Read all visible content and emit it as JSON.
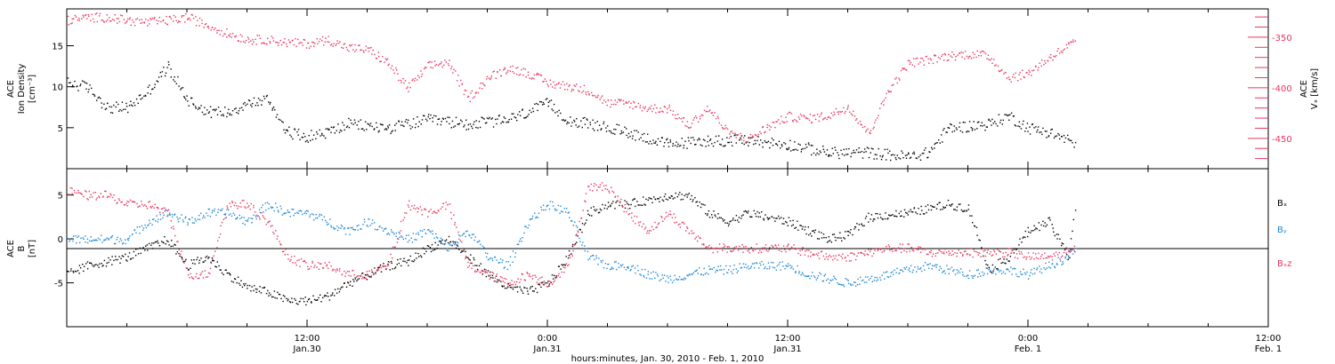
{
  "colors": {
    "black": "#000000",
    "red": "#e8365f",
    "blue": "#1f86d6"
  },
  "xaxis": {
    "label": "hours:minutes, Jan. 30, 2010 - Feb. 1, 2010",
    "ticks": [
      {
        "time": "12:00",
        "date": "Jan.30",
        "hour": 12
      },
      {
        "time": "0:00",
        "date": "Jan.31",
        "hour": 24
      },
      {
        "time": "12:00",
        "date": "Jan.31",
        "hour": 36
      },
      {
        "time": "0:00",
        "date": "Feb. 1",
        "hour": 48
      },
      {
        "time": "12:00",
        "date": "Feb. 1",
        "hour": 60
      }
    ]
  },
  "panel1": {
    "left_label": [
      "ACE",
      "Ion Density",
      "[cm⁻³]"
    ],
    "right_label": [
      "ACE",
      "Vₓ [km/s]"
    ],
    "left_ticks": [
      "15",
      "10",
      "5"
    ],
    "right_ticks": [
      "-350",
      "-400",
      "-450"
    ]
  },
  "panel2": {
    "left_label": [
      "ACE",
      "B",
      "[nT]"
    ],
    "left_ticks": [
      "5",
      "0",
      "-5"
    ],
    "legend": [
      "Bₓ",
      "Bᵧ",
      "Bₓz"
    ]
  },
  "chart_data": [
    {
      "type": "scatter",
      "title": "",
      "xlabel": "hours:minutes, Jan. 30, 2010 - Feb. 1, 2010",
      "ylabel": "ACE Ion Density [cm⁻³]",
      "y2label": "ACE Vx [km/s]",
      "xlim": [
        "2010-01-30 00:00",
        "2010-02-01 12:00"
      ],
      "ylim": [
        0,
        19.5
      ],
      "y2lim": [
        -480,
        -322
      ],
      "series": [
        {
          "name": "Ion Density",
          "axis": "left",
          "color": "black",
          "x": [
            "2010-01-30 00:00",
            "2010-01-30 01:00",
            "2010-01-30 02:00",
            "2010-01-30 03:00",
            "2010-01-30 04:00",
            "2010-01-30 05:00",
            "2010-01-30 06:00",
            "2010-01-30 07:00",
            "2010-01-30 08:00",
            "2010-01-30 09:00",
            "2010-01-30 10:00",
            "2010-01-30 11:00",
            "2010-01-30 12:00",
            "2010-01-30 13:00",
            "2010-01-30 14:00",
            "2010-01-30 16:00",
            "2010-01-30 18:00",
            "2010-01-30 20:00",
            "2010-01-30 22:00",
            "2010-01-31 00:00",
            "2010-01-31 01:00",
            "2010-01-31 02:00",
            "2010-01-31 04:00",
            "2010-01-31 06:00",
            "2010-01-31 08:00",
            "2010-01-31 10:00",
            "2010-01-31 12:00",
            "2010-01-31 14:00",
            "2010-01-31 16:00",
            "2010-01-31 18:00",
            "2010-01-31 19:00",
            "2010-01-31 20:00",
            "2010-01-31 22:00",
            "2010-01-31 23:00",
            "2010-02-01 00:00",
            "2010-02-01 01:00",
            "2010-02-01 02:00",
            "2010-02-01 02:20"
          ],
          "y": [
            10.5,
            10,
            7.5,
            7.5,
            9.5,
            12.5,
            8.5,
            7,
            7,
            8,
            8.5,
            4.5,
            4,
            4.5,
            5.5,
            5,
            6,
            5.5,
            6,
            8,
            6,
            5.5,
            4.5,
            3,
            3.5,
            3.5,
            3,
            2,
            2,
            1.5,
            2,
            5,
            5.5,
            6.5,
            5,
            4.5,
            3.5,
            3
          ]
        },
        {
          "name": "Vx",
          "axis": "right",
          "color": "red",
          "x": [
            "2010-01-30 00:00",
            "2010-01-30 01:00",
            "2010-01-30 02:00",
            "2010-01-30 03:00",
            "2010-01-30 04:00",
            "2010-01-30 05:00",
            "2010-01-30 06:00",
            "2010-01-30 07:00",
            "2010-01-30 08:00",
            "2010-01-30 09:00",
            "2010-01-30 10:00",
            "2010-01-30 11:00",
            "2010-01-30 12:00",
            "2010-01-30 13:00",
            "2010-01-30 14:00",
            "2010-01-30 15:00",
            "2010-01-30 16:00",
            "2010-01-30 17:00",
            "2010-01-30 18:00",
            "2010-01-30 19:00",
            "2010-01-30 20:00",
            "2010-01-30 21:00",
            "2010-01-30 22:00",
            "2010-01-30 23:00",
            "2010-01-31 00:00",
            "2010-01-31 01:00",
            "2010-01-31 02:00",
            "2010-01-31 03:00",
            "2010-01-31 04:00",
            "2010-01-31 05:00",
            "2010-01-31 06:00",
            "2010-01-31 07:00",
            "2010-01-31 08:00",
            "2010-01-31 09:00",
            "2010-01-31 10:00",
            "2010-01-31 11:00",
            "2010-01-31 12:00",
            "2010-01-31 13:00",
            "2010-01-31 14:00",
            "2010-01-31 15:00",
            "2010-01-31 16:00",
            "2010-01-31 17:00",
            "2010-01-31 18:00",
            "2010-01-31 19:00",
            "2010-01-31 20:00",
            "2010-01-31 21:00",
            "2010-01-31 22:00",
            "2010-01-31 23:00",
            "2010-02-01 00:00",
            "2010-02-01 01:00",
            "2010-02-01 02:00",
            "2010-02-01 02:20"
          ],
          "y": [
            -333,
            -330,
            -330,
            -333,
            -335,
            -333,
            -330,
            -338,
            -346,
            -352,
            -352,
            -355,
            -356,
            -352,
            -360,
            -362,
            -375,
            -400,
            -378,
            -374,
            -410,
            -390,
            -380,
            -385,
            -395,
            -398,
            -402,
            -415,
            -415,
            -420,
            -420,
            -437,
            -420,
            -445,
            -450,
            -438,
            -428,
            -430,
            -427,
            -418,
            -445,
            -402,
            -375,
            -372,
            -368,
            -366,
            -368,
            -390,
            -385,
            -370,
            -358,
            -353
          ]
        }
      ]
    },
    {
      "type": "scatter",
      "title": "",
      "xlabel": "hours:minutes, Jan. 30, 2010 - Feb. 1, 2010",
      "ylabel": "ACE B [nT]",
      "xlim": [
        "2010-01-30 00:00",
        "2010-02-01 12:00"
      ],
      "ylim": [
        -10,
        8
      ],
      "series": [
        {
          "name": "Bx",
          "color": "black",
          "x": [
            "2010-01-30 00:00",
            "2010-01-30 01:00",
            "2010-01-30 02:00",
            "2010-01-30 03:00",
            "2010-01-30 04:00",
            "2010-01-30 05:00",
            "2010-01-30 06:00",
            "2010-01-30 07:00",
            "2010-01-30 08:00",
            "2010-01-30 09:00",
            "2010-01-30 10:00",
            "2010-01-30 11:00",
            "2010-01-30 12:00",
            "2010-01-30 13:00",
            "2010-01-30 14:00",
            "2010-01-30 15:00",
            "2010-01-30 16:00",
            "2010-01-30 17:00",
            "2010-01-30 18:00",
            "2010-01-30 19:00",
            "2010-01-30 20:00",
            "2010-01-30 21:00",
            "2010-01-30 22:00",
            "2010-01-30 23:00",
            "2010-01-31 00:00",
            "2010-01-31 01:00",
            "2010-01-31 02:00",
            "2010-01-31 03:00",
            "2010-01-31 04:00",
            "2010-01-31 05:00",
            "2010-01-31 06:00",
            "2010-01-31 07:00",
            "2010-01-31 08:00",
            "2010-01-31 09:00",
            "2010-01-31 10:00",
            "2010-01-31 11:00",
            "2010-01-31 12:00",
            "2010-01-31 13:00",
            "2010-01-31 14:00",
            "2010-01-31 15:00",
            "2010-01-31 16:00",
            "2010-01-31 17:00",
            "2010-01-31 18:00",
            "2010-01-31 19:00",
            "2010-01-31 20:00",
            "2010-01-31 21:00",
            "2010-01-31 22:00",
            "2010-01-31 23:00",
            "2010-02-01 00:00",
            "2010-02-01 01:00",
            "2010-02-01 02:00",
            "2010-02-01 02:20"
          ],
          "y": [
            -4,
            -3,
            -2.5,
            -2,
            -1,
            0,
            -3,
            -2,
            -4,
            -5.5,
            -6,
            -7,
            -7,
            -6.5,
            -5,
            -4,
            -3,
            -2.5,
            -1,
            0,
            -2,
            -4,
            -5.5,
            -6,
            -5,
            -2,
            3,
            4,
            4,
            4.5,
            5,
            5,
            3,
            2,
            3,
            2.5,
            2,
            1,
            0,
            0.5,
            2.5,
            2.8,
            3,
            3.5,
            4,
            3.5,
            -3.5,
            -2,
            1,
            2,
            -2,
            4
          ]
        },
        {
          "name": "By",
          "color": "blue",
          "x": [
            "2010-01-30 00:00",
            "2010-01-30 01:00",
            "2010-01-30 02:00",
            "2010-01-30 03:00",
            "2010-01-30 04:00",
            "2010-01-30 05:00",
            "2010-01-30 06:00",
            "2010-01-30 07:00",
            "2010-01-30 08:00",
            "2010-01-30 09:00",
            "2010-01-30 10:00",
            "2010-01-30 11:00",
            "2010-01-30 12:00",
            "2010-01-30 13:00",
            "2010-01-30 14:00",
            "2010-01-30 15:00",
            "2010-01-30 16:00",
            "2010-01-30 17:00",
            "2010-01-30 18:00",
            "2010-01-30 19:00",
            "2010-01-30 20:00",
            "2010-01-30 21:00",
            "2010-01-30 22:00",
            "2010-01-30 23:00",
            "2010-01-31 00:00",
            "2010-01-31 01:00",
            "2010-01-31 02:00",
            "2010-01-31 03:00",
            "2010-01-31 04:00",
            "2010-01-31 05:00",
            "2010-01-31 06:00",
            "2010-01-31 07:00",
            "2010-01-31 08:00",
            "2010-01-31 09:00",
            "2010-01-31 10:00",
            "2010-01-31 11:00",
            "2010-01-31 12:00",
            "2010-01-31 13:00",
            "2010-01-31 14:00",
            "2010-01-31 15:00",
            "2010-01-31 16:00",
            "2010-01-31 17:00",
            "2010-01-31 18:00",
            "2010-01-31 19:00",
            "2010-01-31 20:00",
            "2010-01-31 21:00",
            "2010-01-31 22:00",
            "2010-01-31 23:00",
            "2010-02-01 00:00",
            "2010-02-01 01:00",
            "2010-02-01 02:00",
            "2010-02-01 02:20"
          ],
          "y": [
            0,
            0,
            0,
            0,
            2,
            3,
            2,
            3,
            3,
            2,
            4,
            3,
            3,
            2,
            1,
            2,
            1,
            0,
            1,
            -1,
            1,
            -2,
            -3,
            2,
            4,
            3,
            -2,
            -3,
            -3,
            -4,
            -4.5,
            -4,
            -3.5,
            -3.5,
            -3,
            -3,
            -3,
            -4,
            -4.5,
            -5,
            -4.5,
            -4,
            -3.5,
            -3,
            -3.5,
            -4,
            -3.5,
            -3.5,
            -4,
            -3,
            -2,
            -1
          ]
        },
        {
          "name": "Bz",
          "color": "red",
          "x": [
            "2010-01-30 00:00",
            "2010-01-30 01:00",
            "2010-01-30 02:00",
            "2010-01-30 03:00",
            "2010-01-30 04:00",
            "2010-01-30 05:00",
            "2010-01-30 06:00",
            "2010-01-30 07:00",
            "2010-01-30 08:00",
            "2010-01-30 09:00",
            "2010-01-30 10:00",
            "2010-01-30 11:00",
            "2010-01-30 12:00",
            "2010-01-30 13:00",
            "2010-01-30 14:00",
            "2010-01-30 15:00",
            "2010-01-30 16:00",
            "2010-01-30 17:00",
            "2010-01-30 18:00",
            "2010-01-30 19:00",
            "2010-01-30 20:00",
            "2010-01-30 21:00",
            "2010-01-30 22:00",
            "2010-01-30 23:00",
            "2010-01-31 00:00",
            "2010-01-31 01:00",
            "2010-01-31 02:00",
            "2010-01-31 03:00",
            "2010-01-31 04:00",
            "2010-01-31 05:00",
            "2010-01-31 06:00",
            "2010-01-31 07:00",
            "2010-01-31 08:00",
            "2010-01-31 09:00",
            "2010-01-31 10:00",
            "2010-01-31 11:00",
            "2010-01-31 12:00",
            "2010-01-31 13:00",
            "2010-01-31 14:00",
            "2010-01-31 15:00",
            "2010-01-31 16:00",
            "2010-01-31 17:00",
            "2010-01-31 18:00",
            "2010-01-31 19:00",
            "2010-01-31 20:00",
            "2010-01-31 21:00",
            "2010-01-31 22:00",
            "2010-01-31 23:00",
            "2010-02-01 00:00",
            "2010-02-01 01:00",
            "2010-02-01 02:00",
            "2010-02-01 02:20"
          ],
          "y": [
            5.5,
            5,
            5,
            4,
            4,
            3,
            -4,
            -4,
            4,
            4,
            2,
            -2,
            -3,
            -3,
            -4,
            -4,
            -3,
            4,
            3,
            4,
            -3,
            -4,
            -5,
            -4,
            -5,
            -3,
            6,
            6,
            3,
            1,
            3,
            1,
            -1,
            -1,
            -1,
            -1,
            -1,
            -1.5,
            -2,
            -2,
            -1.5,
            -1,
            -1,
            -1.5,
            -1.5,
            -1.5,
            -1.5,
            -1.5,
            -2,
            -2,
            -1.5,
            -1
          ]
        }
      ]
    }
  ]
}
